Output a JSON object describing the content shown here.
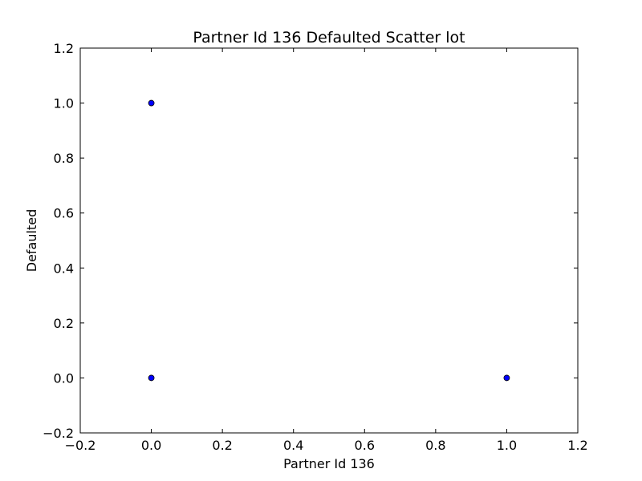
{
  "chart_data": {
    "type": "scatter",
    "title": "Partner Id 136 Defaulted Scatter lot",
    "xlabel": "Partner Id 136",
    "ylabel": "Defaulted",
    "xlim": [
      -0.2,
      1.2
    ],
    "ylim": [
      -0.2,
      1.2
    ],
    "xticks": [
      "−0.2",
      "0.0",
      "0.2",
      "0.4",
      "0.6",
      "0.8",
      "1.0",
      "1.2"
    ],
    "yticks": [
      "−0.2",
      "0.0",
      "0.2",
      "0.4",
      "0.6",
      "0.8",
      "1.0",
      "1.2"
    ],
    "xtick_values": [
      -0.2,
      0.0,
      0.2,
      0.4,
      0.6,
      0.8,
      1.0,
      1.2
    ],
    "ytick_values": [
      -0.2,
      0.0,
      0.2,
      0.4,
      0.6,
      0.8,
      1.0,
      1.2
    ],
    "grid": false,
    "marker_color": "#0000ff",
    "series": [
      {
        "x": [
          0,
          0,
          1
        ],
        "y": [
          1,
          0,
          0
        ]
      }
    ]
  }
}
